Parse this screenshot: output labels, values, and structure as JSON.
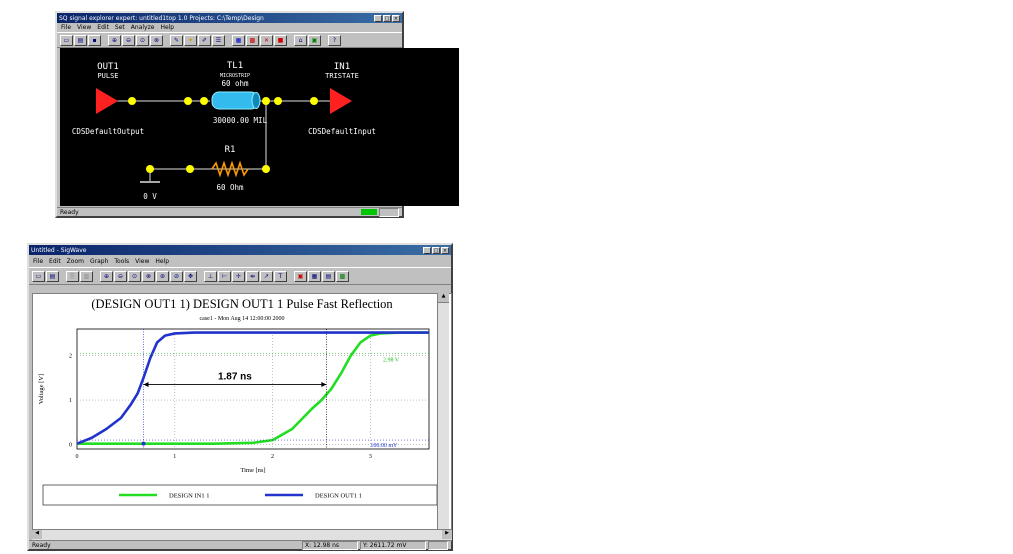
{
  "window1": {
    "title": "SQ signal explorer expert: untitled1top 1.0  Projects: C:\\Temp\\Design",
    "menu": [
      "File",
      "View",
      "Edit",
      "Set",
      "Analyze",
      "Help"
    ],
    "components": {
      "out1": {
        "name": "OUT1",
        "model": "PULSE",
        "ref": "CDSDefaultOutput"
      },
      "tl1": {
        "name": "TL1",
        "model": "MICROSTRIP",
        "impedance": "60 ohm",
        "length": "30000.00 MIL"
      },
      "in1": {
        "name": "IN1",
        "model": "TRISTATE",
        "ref": "CDSDefaultInput"
      },
      "r1": {
        "name": "R1",
        "value": "60 Ohm"
      },
      "gnd": {
        "label": "0 V"
      }
    },
    "status": "Ready"
  },
  "window2": {
    "title": "Untitled - SigWave",
    "menu": [
      "File",
      "Edit",
      "Zoom",
      "Graph",
      "Tools",
      "View",
      "Help"
    ],
    "status": {
      "left": "Ready",
      "x": "X: 12.98 ns",
      "y": "Y: 2611.72 mV"
    }
  },
  "chart_data": {
    "type": "line",
    "title": "(DESIGN OUT1 1) DESIGN OUT1 1 Pulse Fast Reflection",
    "subtitle": "case1 - Mon Aug 14 12:00:00 2000",
    "xlabel": "Time [ns]",
    "ylabel": "Voltage [V]",
    "xlim": [
      0,
      3.6
    ],
    "ylim": [
      -0.1,
      2.6
    ],
    "xticks": [
      "0",
      "1",
      "2",
      "3"
    ],
    "yticks": [
      "0",
      "1",
      "2"
    ],
    "annotations": {
      "delay": "1.87 ns",
      "high_level": "2.98 V",
      "low_level": "100.00 mV"
    },
    "grid": true,
    "legend": "bottom",
    "series": [
      {
        "name": "DESIGN IN1 1",
        "color": "#22dd22",
        "x": [
          0,
          1.4,
          1.8,
          2.0,
          2.2,
          2.4,
          2.5,
          2.6,
          2.7,
          2.8,
          2.9,
          3.0,
          3.1,
          3.3,
          3.6
        ],
        "y": [
          0.02,
          0.02,
          0.04,
          0.1,
          0.35,
          0.8,
          1.0,
          1.25,
          1.6,
          2.0,
          2.3,
          2.45,
          2.5,
          2.52,
          2.52
        ]
      },
      {
        "name": "DESIGN OUT1 1",
        "color": "#2233cc",
        "x": [
          0,
          0.15,
          0.3,
          0.45,
          0.55,
          0.62,
          0.68,
          0.75,
          0.82,
          0.9,
          1.0,
          1.2,
          2.0,
          3.6
        ],
        "y": [
          0.02,
          0.15,
          0.35,
          0.6,
          0.9,
          1.15,
          1.5,
          1.95,
          2.3,
          2.45,
          2.5,
          2.52,
          2.52,
          2.52
        ]
      }
    ]
  }
}
